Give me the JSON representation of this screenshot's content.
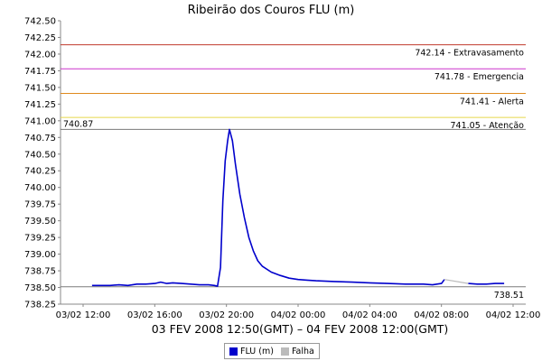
{
  "chart_data": {
    "type": "line",
    "title": "Ribeirão dos Couros FLU (m)",
    "xlabel": "03 FEV 2008 12:50(GMT) – 04 FEV 2008 12:00(GMT)",
    "ylabel": "",
    "ylim": [
      738.25,
      742.5
    ],
    "xlim": [
      "2008-02-03 12:00",
      "2008-02-04 12:00"
    ],
    "grid": false,
    "legend_position": "bottom-center",
    "y_ticks": [
      "738.25",
      "738.50",
      "738.75",
      "739.00",
      "739.25",
      "739.50",
      "739.75",
      "740.00",
      "740.25",
      "740.50",
      "740.75",
      "741.00",
      "741.25",
      "741.50",
      "741.75",
      "742.00",
      "742.25",
      "742.50"
    ],
    "x_ticks": [
      "03/02 12:00",
      "03/02 16:00",
      "03/02 20:00",
      "04/02 00:00",
      "04/02 04:00",
      "04/02 08:00",
      "04/02 12:00"
    ],
    "thresholds": [
      {
        "label": "742.14 - Extravasamento",
        "value": 742.14,
        "color": "#c0392b"
      },
      {
        "label": "741.78 - Emergencia",
        "value": 741.78,
        "color": "#cc33cc"
      },
      {
        "label": "741.41 - Alerta",
        "value": 741.41,
        "color": "#e08a1e"
      },
      {
        "label": "741.05 - Atenção",
        "value": 741.05,
        "color": "#e8d84a"
      }
    ],
    "max_marker": {
      "label": "740.87",
      "value": 740.87,
      "color": "#7a7a7a"
    },
    "min_marker": {
      "label": "738.51",
      "value": 738.51,
      "color": "#7a7a7a"
    },
    "series": [
      {
        "name": "FLU (m)",
        "color": "#0000cc",
        "points": [
          [
            "2008-02-03 12:30",
            738.53
          ],
          [
            "2008-02-03 13:00",
            738.53
          ],
          [
            "2008-02-03 13:30",
            738.53
          ],
          [
            "2008-02-03 14:00",
            738.54
          ],
          [
            "2008-02-03 14:30",
            738.53
          ],
          [
            "2008-02-03 15:00",
            738.55
          ],
          [
            "2008-02-03 15:30",
            738.55
          ],
          [
            "2008-02-03 16:00",
            738.56
          ],
          [
            "2008-02-03 16:20",
            738.58
          ],
          [
            "2008-02-03 16:40",
            738.56
          ],
          [
            "2008-02-03 17:00",
            738.57
          ],
          [
            "2008-02-03 17:30",
            738.56
          ],
          [
            "2008-02-03 18:00",
            738.55
          ],
          [
            "2008-02-03 18:30",
            738.54
          ],
          [
            "2008-02-03 19:00",
            738.54
          ],
          [
            "2008-02-03 19:20",
            738.53
          ],
          [
            "2008-02-03 19:30",
            738.52
          ],
          [
            "2008-02-03 19:40",
            738.8
          ],
          [
            "2008-02-03 19:48",
            739.8
          ],
          [
            "2008-02-03 19:56",
            740.4
          ],
          [
            "2008-02-03 20:04",
            740.7
          ],
          [
            "2008-02-03 20:10",
            740.87
          ],
          [
            "2008-02-03 20:20",
            740.7
          ],
          [
            "2008-02-03 20:30",
            740.35
          ],
          [
            "2008-02-03 20:45",
            739.9
          ],
          [
            "2008-02-03 21:00",
            739.55
          ],
          [
            "2008-02-03 21:15",
            739.25
          ],
          [
            "2008-02-03 21:30",
            739.05
          ],
          [
            "2008-02-03 21:45",
            738.9
          ],
          [
            "2008-02-03 22:00",
            738.82
          ],
          [
            "2008-02-03 22:30",
            738.73
          ],
          [
            "2008-02-03 23:00",
            738.68
          ],
          [
            "2008-02-03 23:30",
            738.64
          ],
          [
            "2008-02-04 00:00",
            738.62
          ],
          [
            "2008-02-04 00:30",
            738.61
          ],
          [
            "2008-02-04 01:00",
            738.6
          ],
          [
            "2008-02-04 02:00",
            738.59
          ],
          [
            "2008-02-04 03:00",
            738.58
          ],
          [
            "2008-02-04 04:00",
            738.57
          ],
          [
            "2008-02-04 05:00",
            738.56
          ],
          [
            "2008-02-04 06:00",
            738.55
          ],
          [
            "2008-02-04 07:00",
            738.55
          ],
          [
            "2008-02-04 07:30",
            738.54
          ],
          [
            "2008-02-04 08:00",
            738.56
          ],
          [
            "2008-02-04 08:10",
            738.62
          ],
          [
            "__gap__",
            null
          ],
          [
            "2008-02-04 09:30",
            738.56
          ],
          [
            "2008-02-04 10:00",
            738.55
          ],
          [
            "2008-02-04 10:30",
            738.55
          ],
          [
            "2008-02-04 11:00",
            738.56
          ],
          [
            "2008-02-04 11:30",
            738.56
          ]
        ]
      },
      {
        "name": "Falha",
        "color": "#bbbbbb",
        "points": [
          [
            "2008-02-04 08:10",
            738.62
          ],
          [
            "2008-02-04 09:30",
            738.56
          ]
        ]
      }
    ]
  }
}
